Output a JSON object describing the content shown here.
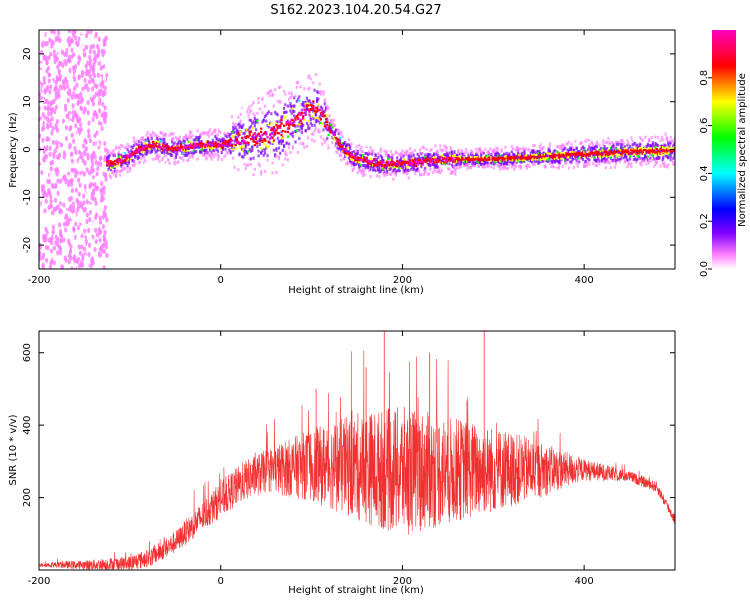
{
  "title": "S162.2023.104.20.54.G27",
  "chart_data": [
    {
      "type": "heatmap",
      "xlabel": "Height of straight line (km)",
      "ylabel": "Frequency (Hz)",
      "xlim": [
        -200,
        500
      ],
      "ylim": [
        -25,
        25
      ],
      "xticks": [
        -200,
        0,
        200,
        400
      ],
      "yticks": [
        -20,
        -10,
        0,
        10,
        20
      ],
      "colorbar": {
        "label": "Normalized spectral amplitude",
        "range": [
          0.0,
          1.0
        ],
        "ticks": [
          0.0,
          0.2,
          0.4,
          0.6,
          0.8
        ],
        "tick_labels": [
          "0.0",
          "0.2",
          "0.4",
          "0.6",
          "0.8"
        ],
        "colors": [
          "#ffffff",
          "#ff80ff",
          "#8000ff",
          "#0000ff",
          "#00ffff",
          "#00ff00",
          "#ffff00",
          "#ff0000",
          "#ff00c0"
        ]
      },
      "ridge": {
        "x": [
          -135,
          -120,
          -105,
          -90,
          -75,
          -50,
          -25,
          0,
          25,
          50,
          65,
          80,
          95,
          105,
          115,
          125,
          135,
          150,
          175,
          200,
          225,
          250,
          300,
          350,
          400,
          450,
          500
        ],
        "y": [
          -2,
          -3,
          -2,
          0,
          1,
          0,
          1,
          1,
          2,
          3,
          4,
          6,
          8,
          9,
          6,
          3,
          0,
          -2,
          -3,
          -3,
          -2.5,
          -2,
          -2,
          -1.5,
          -1,
          -0.5,
          -0.2
        ]
      },
      "noise_region_x": [
        -200,
        -125
      ]
    },
    {
      "type": "line",
      "xlabel": "Height of straight line (km)",
      "ylabel": "SNR (10 * v/v)",
      "xlim": [
        -200,
        500
      ],
      "ylim": [
        0,
        660
      ],
      "xticks": [
        -200,
        0,
        200,
        400
      ],
      "yticks": [
        200,
        400,
        600
      ],
      "color": "#f03030",
      "envelope": {
        "x": [
          -200,
          -150,
          -100,
          -75,
          -50,
          -25,
          0,
          25,
          50,
          75,
          100,
          150,
          200,
          250,
          300,
          350,
          400,
          450,
          480,
          500
        ],
        "y": [
          15,
          15,
          20,
          40,
          80,
          140,
          200,
          250,
          280,
          290,
          300,
          300,
          290,
          290,
          290,
          285,
          280,
          260,
          230,
          140
        ]
      },
      "spread": {
        "x": [
          -200,
          -50,
          0,
          50,
          100,
          150,
          200,
          250,
          300,
          350,
          400,
          450,
          500
        ],
        "y": [
          5,
          30,
          50,
          60,
          100,
          150,
          180,
          150,
          120,
          80,
          30,
          15,
          15
        ]
      },
      "peaks": [
        {
          "x": 180,
          "y": 660
        },
        {
          "x": 290,
          "y": 660
        },
        {
          "x": 105,
          "y": 500
        },
        {
          "x": 160,
          "y": 560
        },
        {
          "x": 230,
          "y": 600
        }
      ]
    }
  ]
}
